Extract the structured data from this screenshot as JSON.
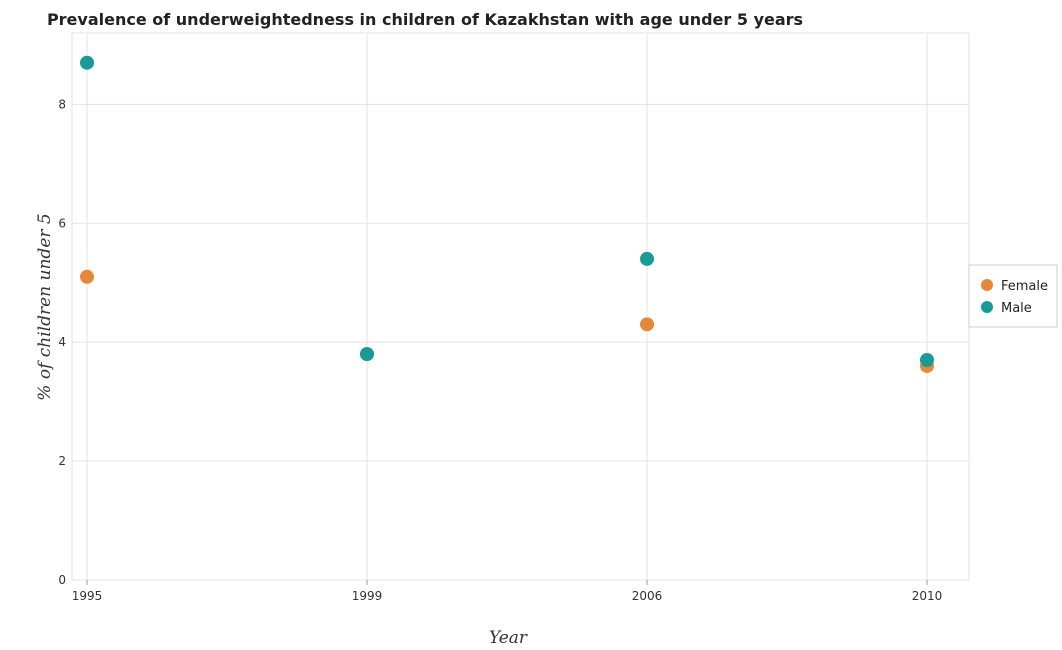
{
  "chart_data": {
    "type": "scatter",
    "title": "Prevalence of underweightedness in children of Kazakhstan with age under 5 years",
    "xlabel": "Year",
    "ylabel": "% of children under 5",
    "categories": [
      "1995",
      "1999",
      "2006",
      "2010"
    ],
    "ylim": [
      0,
      9.2
    ],
    "yticks": [
      "0",
      "2",
      "4",
      "6",
      "8"
    ],
    "grid": true,
    "legend_position": "right",
    "series": [
      {
        "name": "Female",
        "color": "#e6883a",
        "values": [
          5.1,
          3.8,
          4.3,
          3.6
        ]
      },
      {
        "name": "Male",
        "color": "#1a9a97",
        "values": [
          8.7,
          3.8,
          5.4,
          3.7
        ]
      }
    ]
  }
}
